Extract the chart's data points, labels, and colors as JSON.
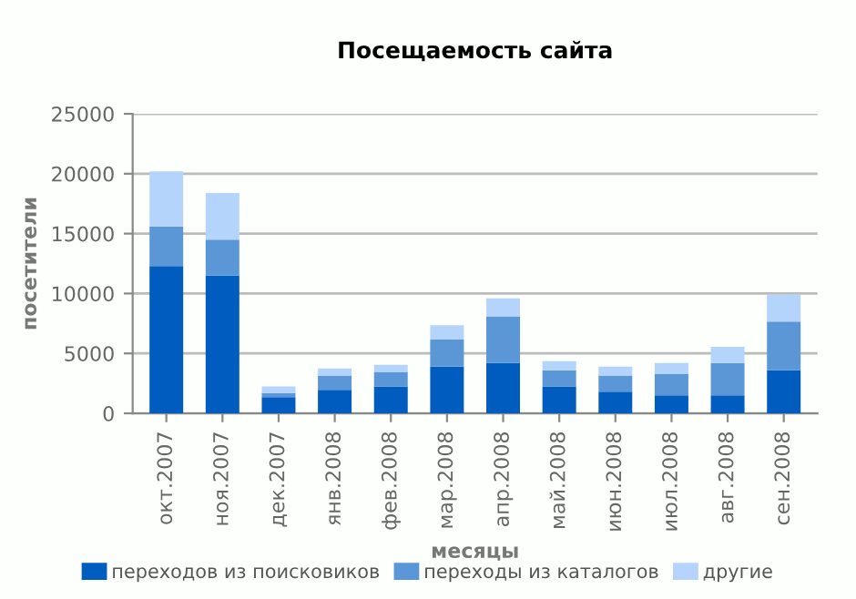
{
  "chart_data": {
    "type": "bar",
    "title": "Посещаемость сайта",
    "xlabel": "месяцы",
    "ylabel": "посетители",
    "categories": [
      "окт.2007",
      "ноя.2007",
      "дек.2007",
      "янв.2008",
      "фев.2008",
      "мар.2008",
      "апр.2008",
      "май.2008",
      "июн.2008",
      "июл.2008",
      "авг.2008",
      "сен.2008"
    ],
    "stacked": true,
    "series": [
      {
        "name": "переходов из поисковиков",
        "color": "#005cbf",
        "values": [
          12300,
          11500,
          1350,
          1950,
          2250,
          3900,
          4200,
          2250,
          1800,
          1500,
          1500,
          3600
        ]
      },
      {
        "name": "переходы из каталогов",
        "color": "#5b97d6",
        "values": [
          3300,
          3000,
          350,
          1200,
          1200,
          2250,
          3900,
          1350,
          1350,
          1800,
          2700,
          4050
        ]
      },
      {
        "name": "другие",
        "color": "#b5d4fb",
        "values": [
          4600,
          3900,
          550,
          600,
          600,
          1200,
          1500,
          750,
          750,
          900,
          1350,
          2250
        ]
      }
    ],
    "ylim": [
      0,
      25000
    ],
    "yticks": [
      0,
      5000,
      10000,
      15000,
      20000,
      25000
    ],
    "grid": "y",
    "legend": "bottom"
  }
}
